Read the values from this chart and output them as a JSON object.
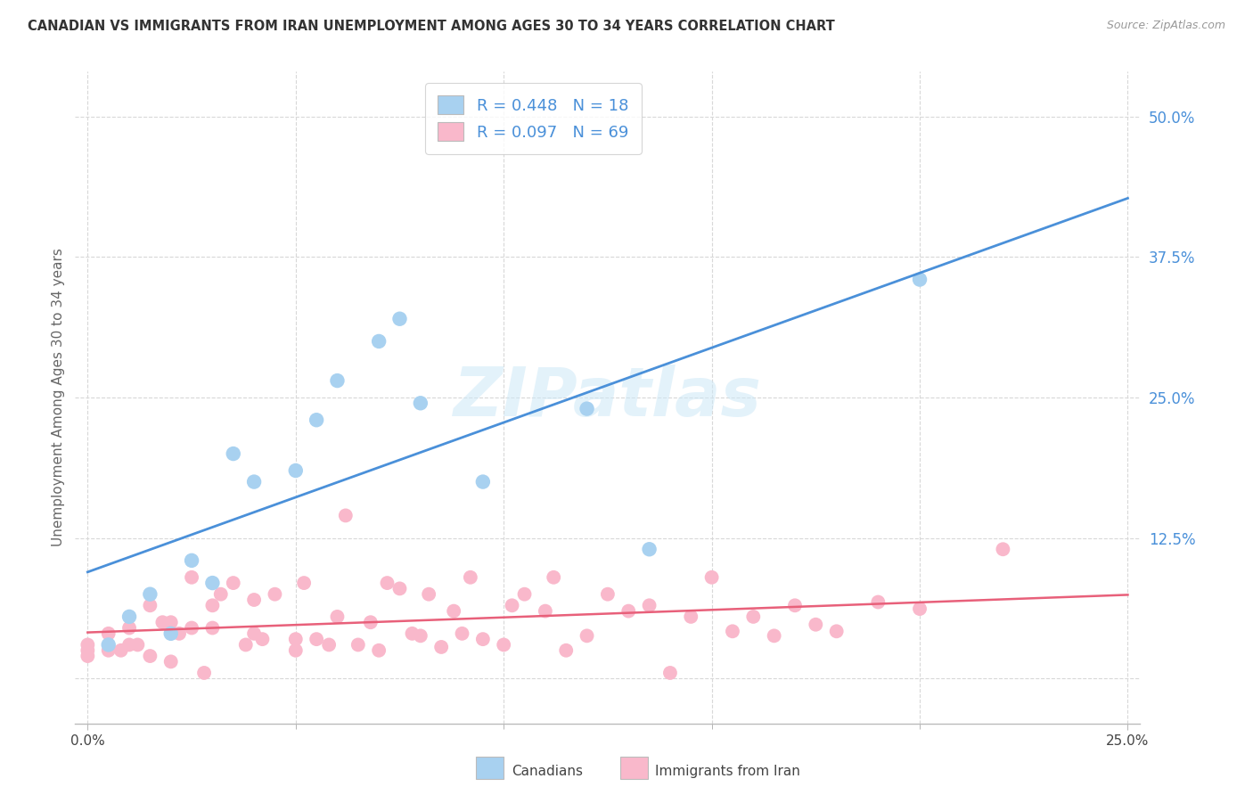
{
  "title": "CANADIAN VS IMMIGRANTS FROM IRAN UNEMPLOYMENT AMONG AGES 30 TO 34 YEARS CORRELATION CHART",
  "source": "Source: ZipAtlas.com",
  "ylabel": "Unemployment Among Ages 30 to 34 years",
  "xlabel_canadians": "Canadians",
  "xlabel_iran": "Immigrants from Iran",
  "xmin": 0.0,
  "xmax": 0.25,
  "ymin": -0.04,
  "ymax": 0.54,
  "yticks": [
    0.0,
    0.125,
    0.25,
    0.375,
    0.5
  ],
  "ytick_labels": [
    "",
    "12.5%",
    "25.0%",
    "37.5%",
    "50.0%"
  ],
  "xticks": [
    0.0,
    0.25
  ],
  "xtick_labels": [
    "0.0%",
    "25.0%"
  ],
  "watermark": "ZIPatlas",
  "blue_scatter_color": "#a8d1f0",
  "pink_scatter_color": "#f9b8cb",
  "blue_line_color": "#4a90d9",
  "pink_line_color": "#e8607a",
  "legend_text_color": "#4a90d9",
  "grid_color": "#d8d8d8",
  "canadians_x": [
    0.005,
    0.01,
    0.015,
    0.02,
    0.025,
    0.03,
    0.035,
    0.04,
    0.05,
    0.055,
    0.06,
    0.07,
    0.075,
    0.08,
    0.095,
    0.12,
    0.135,
    0.2
  ],
  "canadians_y": [
    0.03,
    0.055,
    0.075,
    0.04,
    0.105,
    0.085,
    0.2,
    0.175,
    0.185,
    0.23,
    0.265,
    0.3,
    0.32,
    0.245,
    0.175,
    0.24,
    0.115,
    0.355
  ],
  "iran_x": [
    0.0,
    0.0,
    0.0,
    0.005,
    0.005,
    0.008,
    0.01,
    0.01,
    0.012,
    0.015,
    0.015,
    0.018,
    0.02,
    0.02,
    0.022,
    0.025,
    0.025,
    0.028,
    0.03,
    0.03,
    0.032,
    0.035,
    0.038,
    0.04,
    0.04,
    0.042,
    0.045,
    0.05,
    0.05,
    0.052,
    0.055,
    0.058,
    0.06,
    0.062,
    0.065,
    0.068,
    0.07,
    0.072,
    0.075,
    0.078,
    0.08,
    0.082,
    0.085,
    0.088,
    0.09,
    0.092,
    0.095,
    0.1,
    0.102,
    0.105,
    0.11,
    0.112,
    0.115,
    0.12,
    0.125,
    0.13,
    0.135,
    0.14,
    0.145,
    0.15,
    0.155,
    0.16,
    0.165,
    0.17,
    0.175,
    0.18,
    0.19,
    0.2,
    0.22
  ],
  "iran_y": [
    0.02,
    0.025,
    0.03,
    0.025,
    0.04,
    0.025,
    0.03,
    0.045,
    0.03,
    0.065,
    0.02,
    0.05,
    0.015,
    0.05,
    0.04,
    0.045,
    0.09,
    0.005,
    0.045,
    0.065,
    0.075,
    0.085,
    0.03,
    0.04,
    0.07,
    0.035,
    0.075,
    0.025,
    0.035,
    0.085,
    0.035,
    0.03,
    0.055,
    0.145,
    0.03,
    0.05,
    0.025,
    0.085,
    0.08,
    0.04,
    0.038,
    0.075,
    0.028,
    0.06,
    0.04,
    0.09,
    0.035,
    0.03,
    0.065,
    0.075,
    0.06,
    0.09,
    0.025,
    0.038,
    0.075,
    0.06,
    0.065,
    0.005,
    0.055,
    0.09,
    0.042,
    0.055,
    0.038,
    0.065,
    0.048,
    0.042,
    0.068,
    0.062,
    0.115
  ]
}
